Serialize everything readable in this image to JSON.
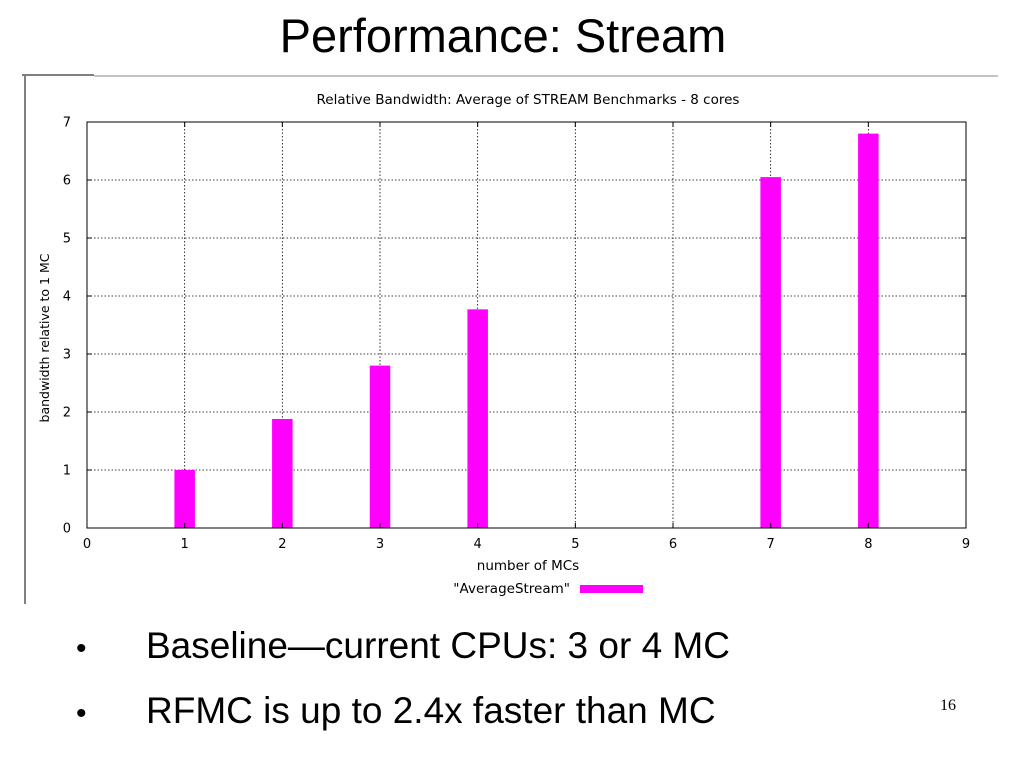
{
  "slide": {
    "title": "Performance: Stream",
    "bullets": [
      "Baseline—current CPUs: 3 or 4 MC",
      "RFMC is up to 2.4x faster than MC"
    ],
    "bullet_glyph": "•",
    "page_number": "16"
  },
  "chart_data": {
    "type": "bar",
    "title": "Relative Bandwidth: Average of STREAM Benchmarks - 8 cores",
    "xlabel": "number of MCs",
    "ylabel": "bandwidth relative to 1 MC",
    "xlim": [
      0,
      9
    ],
    "ylim": [
      0,
      7
    ],
    "xticks": [
      0,
      1,
      2,
      3,
      4,
      5,
      6,
      7,
      8,
      9
    ],
    "yticks": [
      0,
      1,
      2,
      3,
      4,
      5,
      6,
      7
    ],
    "grid": true,
    "legend_position": "bottom",
    "series": [
      {
        "name": "\"AverageStream\"",
        "color": "#ff00ff",
        "x": [
          1,
          2,
          3,
          4,
          7,
          8
        ],
        "values": [
          1.0,
          1.88,
          2.8,
          3.77,
          6.05,
          6.8
        ]
      }
    ]
  }
}
